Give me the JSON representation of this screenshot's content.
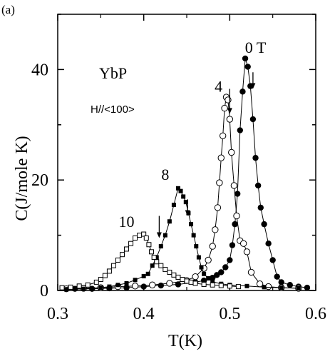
{
  "panel_label": "(a)",
  "chart_data": {
    "type": "scatter",
    "title": "",
    "xlabel": "T(K)",
    "ylabel": "C(J/mole K)",
    "xlim": [
      0.3,
      0.6
    ],
    "ylim": [
      0,
      50
    ],
    "xticks": [
      0.3,
      0.4,
      0.5,
      0.6
    ],
    "yticks": [
      0,
      20,
      40
    ],
    "grid": false,
    "annotations": {
      "compound": "YbP",
      "field_direction": "H//<100>",
      "curve_labels": [
        {
          "text": "0 T",
          "x": 0.53,
          "y": 43
        },
        {
          "text": "4",
          "x": 0.487,
          "y": 36
        },
        {
          "text": "8",
          "x": 0.425,
          "y": 20
        },
        {
          "text": "10",
          "x": 0.38,
          "y": 11.5
        }
      ]
    },
    "transition_arrows": [
      {
        "series": "0 T",
        "x": 0.527,
        "y_top": 39.5,
        "y_bottom": 36.5
      },
      {
        "series": "4",
        "x": 0.5,
        "y_top": 36.5,
        "y_bottom": 32
      },
      {
        "series": "8",
        "x": 0.451,
        "y_top": 16.5,
        "y_bottom": 13.5
      },
      {
        "series": "10",
        "x": 0.418,
        "y_top": 13.5,
        "y_bottom": 9.5
      }
    ],
    "series": [
      {
        "name": "0 T",
        "marker": "filled-circle",
        "x": [
          0.32,
          0.34,
          0.36,
          0.38,
          0.4,
          0.42,
          0.44,
          0.46,
          0.47,
          0.48,
          0.485,
          0.49,
          0.495,
          0.5,
          0.503,
          0.506,
          0.509,
          0.512,
          0.515,
          0.518,
          0.521,
          0.524,
          0.527,
          0.53,
          0.533,
          0.536,
          0.54,
          0.545,
          0.55,
          0.555,
          0.56,
          0.57,
          0.58,
          0.59
        ],
        "y": [
          0.3,
          0.3,
          0.4,
          0.5,
          0.7,
          0.9,
          1.1,
          1.5,
          1.8,
          2.3,
          2.8,
          3.3,
          4.2,
          5.5,
          8.2,
          12,
          17.5,
          29,
          36,
          42,
          40.5,
          37,
          31,
          24,
          19,
          15,
          12,
          8.5,
          5.5,
          2.5,
          1.5,
          1.0,
          0.7,
          0.5
        ]
      },
      {
        "name": "4",
        "marker": "open-circle",
        "x": [
          0.31,
          0.33,
          0.35,
          0.37,
          0.39,
          0.41,
          0.43,
          0.45,
          0.46,
          0.47,
          0.475,
          0.48,
          0.483,
          0.486,
          0.488,
          0.49,
          0.492,
          0.494,
          0.496,
          0.498,
          0.5,
          0.502,
          0.505,
          0.508,
          0.512,
          0.516,
          0.52,
          0.525,
          0.535,
          0.545,
          0.56,
          0.58
        ],
        "y": [
          0.3,
          0.4,
          0.5,
          0.7,
          0.8,
          1.0,
          1.3,
          1.8,
          2.5,
          4,
          5.5,
          8,
          11,
          15,
          19.5,
          24,
          28,
          33,
          35,
          34.5,
          31,
          25,
          19,
          13.5,
          9,
          8.5,
          7,
          3.3,
          1.2,
          0.7,
          0.5,
          0.4
        ]
      },
      {
        "name": "8",
        "marker": "filled-square",
        "x": [
          0.31,
          0.33,
          0.35,
          0.36,
          0.37,
          0.38,
          0.39,
          0.4,
          0.405,
          0.41,
          0.415,
          0.42,
          0.425,
          0.43,
          0.435,
          0.44,
          0.443,
          0.446,
          0.449,
          0.452,
          0.455,
          0.458,
          0.461,
          0.464,
          0.467,
          0.47,
          0.475,
          0.48,
          0.49,
          0.5,
          0.52,
          0.54,
          0.56,
          0.58
        ],
        "y": [
          0.2,
          0.3,
          0.5,
          0.7,
          1.0,
          1.3,
          1.9,
          2.6,
          3.0,
          4.5,
          6,
          8,
          10,
          12.5,
          15.5,
          18.5,
          18,
          17,
          16,
          14,
          12,
          10,
          8,
          6,
          4.2,
          3,
          2.2,
          1.6,
          1.2,
          1.0,
          0.8,
          0.6,
          0.5,
          0.4
        ]
      },
      {
        "name": "10",
        "marker": "open-square",
        "x": [
          0.305,
          0.315,
          0.325,
          0.335,
          0.345,
          0.35,
          0.355,
          0.36,
          0.365,
          0.37,
          0.375,
          0.38,
          0.385,
          0.39,
          0.395,
          0.4,
          0.403,
          0.406,
          0.409,
          0.412,
          0.415,
          0.42,
          0.425,
          0.43,
          0.435,
          0.44,
          0.445,
          0.45,
          0.455,
          0.46,
          0.47,
          0.48,
          0.49,
          0.5,
          0.51
        ],
        "y": [
          0.5,
          0.6,
          0.8,
          1.0,
          1.5,
          2.0,
          2.7,
          3.5,
          4.5,
          5.5,
          6.5,
          7.5,
          8.5,
          9.5,
          10.0,
          10.2,
          9.5,
          8.3,
          7,
          6,
          5.2,
          4.5,
          3.8,
          3.3,
          2.8,
          2.4,
          2.0,
          1.7,
          1.5,
          1.3,
          1.1,
          1.0,
          0.9,
          0.8,
          0.7
        ]
      }
    ]
  }
}
